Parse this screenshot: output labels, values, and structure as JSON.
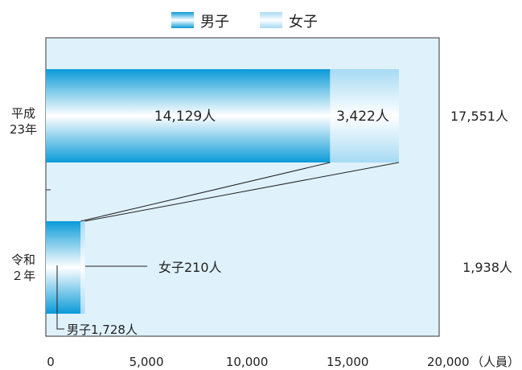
{
  "chart_data": {
    "type": "bar",
    "orientation": "horizontal",
    "stacked": true,
    "categories": [
      "平成\n23年",
      "令和\n２年"
    ],
    "series": [
      {
        "name": "男子",
        "values": [
          14129,
          1728
        ],
        "color": "#1aa3dc"
      },
      {
        "name": "女子",
        "values": [
          3422,
          210
        ],
        "color": "#a9dcf4"
      }
    ],
    "totals": [
      17551,
      1938
    ],
    "data_labels": {
      "male": [
        "14,129人",
        "男子1,728人"
      ],
      "female": [
        "3,422人",
        "女子210人"
      ],
      "totals": [
        "17,551人",
        "1,938人"
      ]
    },
    "x_ticks": [
      "0",
      "5,000",
      "10,000",
      "15,000",
      "20,000"
    ],
    "x_tick_values": [
      0,
      5000,
      10000,
      15000,
      20000
    ],
    "x_unit": "（人員）",
    "xlim": [
      0,
      20000
    ],
    "legend_position": "top-center",
    "grid": false,
    "plot_background": "#dff1fb"
  }
}
